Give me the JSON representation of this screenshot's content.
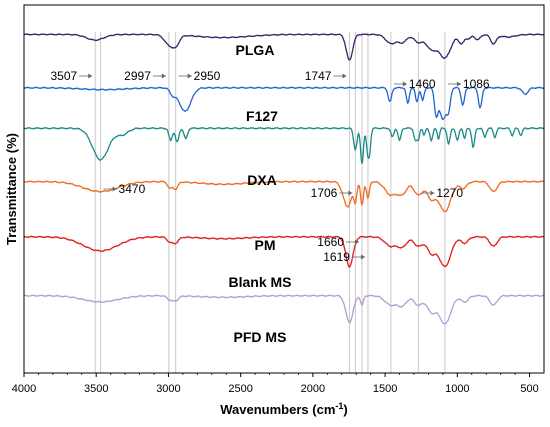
{
  "chart_data": {
    "type": "line",
    "title": "",
    "xlabel": "Wavenumbers (cm",
    "xlabel_sup": "-1",
    "xlabel_close": ")",
    "ylabel": "Transmittance (%)",
    "xlim": [
      4000,
      400
    ],
    "x_reversed": true,
    "x_ticks": [
      4000,
      3500,
      3000,
      2500,
      2000,
      1500,
      1000,
      500
    ],
    "x_tick_labels": [
      "4000",
      "3500",
      "3000",
      "2500",
      "2000",
      "1500",
      "1000",
      "500"
    ],
    "y_ticks_shown": false,
    "reference_lines": [
      3507,
      3470,
      2997,
      2950,
      1747,
      1706,
      1660,
      1619,
      1460,
      1270,
      1086
    ],
    "series": [
      {
        "name": "PLGA",
        "color": "#3c1f66",
        "offset": 0.92,
        "amp": 0.07,
        "peaks": [
          [
            3507,
            0.22,
            60
          ],
          [
            3000,
            0.35,
            30
          ],
          [
            2950,
            0.4,
            25
          ],
          [
            2620,
            0.12,
            180
          ],
          [
            1747,
            1.0,
            22
          ],
          [
            1460,
            0.35,
            35
          ],
          [
            1380,
            0.3,
            30
          ],
          [
            1270,
            0.3,
            30
          ],
          [
            1180,
            0.55,
            35
          ],
          [
            1086,
            0.9,
            40
          ],
          [
            970,
            0.35,
            20
          ],
          [
            920,
            0.15,
            15
          ],
          [
            860,
            0.2,
            20
          ],
          [
            750,
            0.35,
            20
          ],
          [
            650,
            0.1,
            50
          ]
        ]
      },
      {
        "name": "F127",
        "color": "#1e64d2",
        "offset": 0.775,
        "amp": 0.085,
        "peaks": [
          [
            3450,
            0.06,
            150
          ],
          [
            2970,
            0.2,
            20
          ],
          [
            2885,
            0.75,
            40
          ],
          [
            1467,
            0.45,
            12
          ],
          [
            1343,
            0.5,
            10
          ],
          [
            1280,
            0.45,
            10
          ],
          [
            1240,
            0.4,
            10
          ],
          [
            1147,
            0.75,
            12
          ],
          [
            1100,
            1.0,
            25
          ],
          [
            1060,
            0.55,
            12
          ],
          [
            962,
            0.55,
            12
          ],
          [
            842,
            0.65,
            12
          ],
          [
            530,
            0.2,
            20
          ]
        ]
      },
      {
        "name": "DXA",
        "color": "#1a8a86",
        "offset": 0.665,
        "amp": 0.095,
        "peaks": [
          [
            3470,
            0.9,
            55
          ],
          [
            3320,
            0.18,
            40
          ],
          [
            2985,
            0.35,
            12
          ],
          [
            2940,
            0.4,
            12
          ],
          [
            2880,
            0.3,
            12
          ],
          [
            1706,
            0.6,
            12
          ],
          [
            1660,
            1.0,
            10
          ],
          [
            1619,
            0.75,
            10
          ],
          [
            1605,
            0.4,
            8
          ],
          [
            1450,
            0.25,
            10
          ],
          [
            1400,
            0.35,
            10
          ],
          [
            1290,
            0.35,
            10
          ],
          [
            1270,
            0.3,
            8
          ],
          [
            1230,
            0.2,
            8
          ],
          [
            1180,
            0.35,
            10
          ],
          [
            1130,
            0.3,
            8
          ],
          [
            1060,
            0.45,
            10
          ],
          [
            1000,
            0.35,
            10
          ],
          [
            950,
            0.3,
            8
          ],
          [
            890,
            0.55,
            10
          ],
          [
            810,
            0.25,
            10
          ],
          [
            740,
            0.25,
            10
          ],
          [
            620,
            0.2,
            10
          ],
          [
            560,
            0.2,
            10
          ]
        ]
      },
      {
        "name": "PM",
        "color": "#f06a1e",
        "offset": 0.52,
        "amp": 0.09,
        "peaks": [
          [
            3470,
            0.3,
            120
          ],
          [
            2990,
            0.2,
            15
          ],
          [
            2950,
            0.22,
            15
          ],
          [
            2620,
            0.08,
            150
          ],
          [
            1760,
            0.75,
            30
          ],
          [
            1706,
            0.5,
            10
          ],
          [
            1660,
            0.7,
            10
          ],
          [
            1619,
            0.5,
            10
          ],
          [
            1460,
            0.4,
            40
          ],
          [
            1380,
            0.35,
            30
          ],
          [
            1270,
            0.4,
            30
          ],
          [
            1180,
            0.5,
            30
          ],
          [
            1086,
            0.9,
            40
          ],
          [
            960,
            0.2,
            25
          ],
          [
            750,
            0.3,
            25
          ]
        ]
      },
      {
        "name": "Blank MS",
        "color": "#e21a1a",
        "offset": 0.37,
        "amp": 0.085,
        "peaks": [
          [
            3470,
            0.45,
            120
          ],
          [
            2990,
            0.15,
            20
          ],
          [
            2950,
            0.18,
            20
          ],
          [
            2620,
            0.06,
            150
          ],
          [
            1747,
            0.95,
            25
          ],
          [
            1460,
            0.3,
            40
          ],
          [
            1380,
            0.3,
            30
          ],
          [
            1270,
            0.3,
            30
          ],
          [
            1180,
            0.5,
            30
          ],
          [
            1086,
            0.95,
            40
          ],
          [
            950,
            0.2,
            25
          ],
          [
            750,
            0.3,
            25
          ]
        ]
      },
      {
        "name": "PFD MS",
        "color": "#b79ad6",
        "offset": 0.21,
        "amp": 0.085,
        "peaks": [
          [
            3470,
            0.2,
            120
          ],
          [
            2990,
            0.12,
            20
          ],
          [
            2950,
            0.15,
            20
          ],
          [
            2620,
            0.05,
            150
          ],
          [
            1747,
            0.85,
            25
          ],
          [
            1660,
            0.3,
            10
          ],
          [
            1460,
            0.3,
            40
          ],
          [
            1380,
            0.3,
            30
          ],
          [
            1270,
            0.3,
            30
          ],
          [
            1180,
            0.5,
            30
          ],
          [
            1086,
            0.9,
            40
          ],
          [
            950,
            0.2,
            25
          ],
          [
            750,
            0.3,
            25
          ]
        ]
      }
    ],
    "annotations": [
      {
        "text": "3507",
        "x": 3507,
        "side": "left"
      },
      {
        "text": "2997",
        "x": 2997,
        "side": "left"
      },
      {
        "text": "2950",
        "x": 2950,
        "side": "right"
      },
      {
        "text": "1747",
        "x": 1747,
        "side": "left"
      },
      {
        "text": "1460",
        "x": 1460,
        "side": "right"
      },
      {
        "text": "1086",
        "x": 1086,
        "side": "right"
      },
      {
        "text": "3470",
        "x": 3470,
        "side": "right"
      },
      {
        "text": "1706",
        "x": 1706,
        "side": "left"
      },
      {
        "text": "1270",
        "x": 1270,
        "side": "right"
      },
      {
        "text": "1660",
        "x": 1660,
        "side": "left"
      },
      {
        "text": "1619",
        "x": 1619,
        "side": "left"
      }
    ]
  }
}
